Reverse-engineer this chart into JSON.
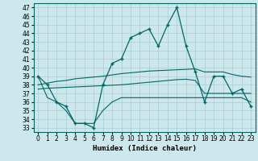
{
  "xlabel": "Humidex (Indice chaleur)",
  "xlim": [
    -0.5,
    23.5
  ],
  "ylim": [
    32.5,
    47.5
  ],
  "yticks": [
    33,
    34,
    35,
    36,
    37,
    38,
    39,
    40,
    41,
    42,
    43,
    44,
    45,
    46,
    47
  ],
  "xticks": [
    0,
    1,
    2,
    3,
    4,
    5,
    6,
    7,
    8,
    9,
    10,
    11,
    12,
    13,
    14,
    15,
    16,
    17,
    18,
    19,
    20,
    21,
    22,
    23
  ],
  "bg_color": "#cce8ec",
  "line_color": "#006666",
  "grid_color": "#aaccd0",
  "series": {
    "main": [
      39,
      38,
      36,
      35.5,
      33.5,
      33.5,
      33,
      38,
      40.5,
      41,
      43.5,
      44,
      44.5,
      42.5,
      45,
      47,
      42.5,
      39.5,
      36,
      39,
      39,
      37,
      37.5,
      35.5
    ],
    "bottom": [
      39,
      36.5,
      36,
      35,
      33.5,
      33.5,
      33.5,
      35,
      36,
      36.5,
      36.5,
      36.5,
      36.5,
      36.5,
      36.5,
      36.5,
      36.5,
      36.5,
      36.5,
      36.5,
      36.5,
      36.5,
      36.5,
      36
    ],
    "trend_hi": [
      38,
      38.2,
      38.4,
      38.5,
      38.7,
      38.8,
      38.9,
      39.0,
      39.15,
      39.3,
      39.4,
      39.5,
      39.6,
      39.65,
      39.7,
      39.75,
      39.8,
      39.85,
      39.5,
      39.5,
      39.5,
      39.2,
      39.0,
      38.9
    ],
    "trend_lo": [
      37.5,
      37.6,
      37.65,
      37.7,
      37.75,
      37.8,
      37.85,
      37.9,
      37.95,
      38.0,
      38.1,
      38.2,
      38.3,
      38.4,
      38.5,
      38.6,
      38.65,
      38.5,
      37.0,
      37.0,
      37.0,
      37.0,
      37.0,
      37.0
    ]
  }
}
